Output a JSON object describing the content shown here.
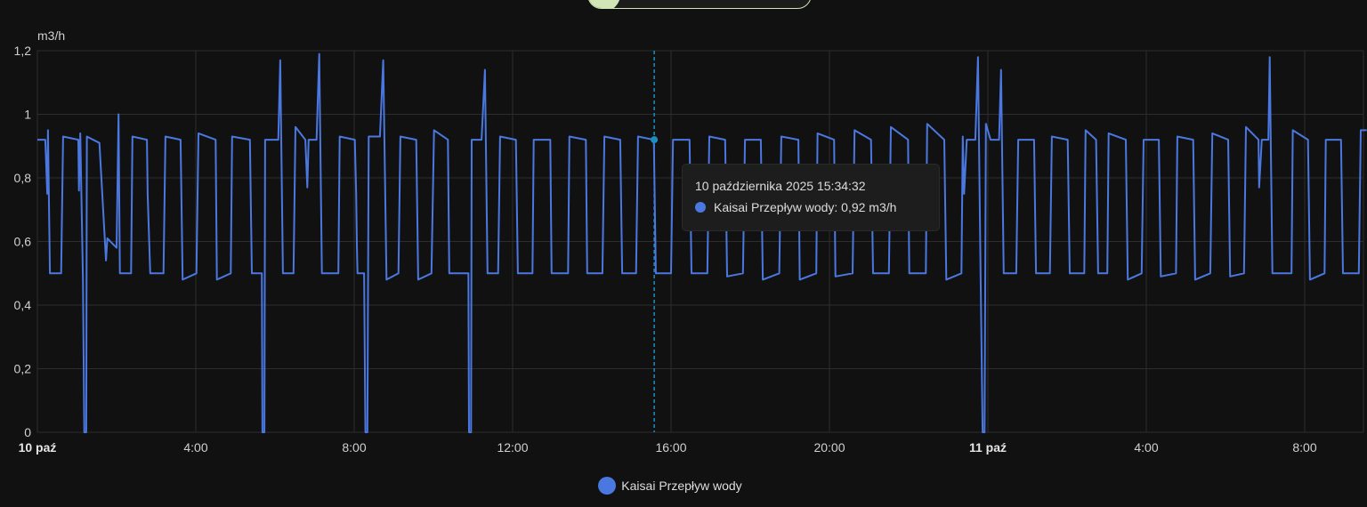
{
  "chart_data": {
    "type": "line",
    "ylabel": "m3/h",
    "ylim": [
      0,
      1.2
    ],
    "yticks": [
      "0",
      "0,2",
      "0,4",
      "0,6",
      "0,8",
      "1",
      "1,2"
    ],
    "ytick_values": [
      0,
      0.2,
      0.4,
      0.6,
      0.8,
      1.0,
      1.2
    ],
    "xlim": [
      "2025-10-10 00:00",
      "2025-10-11 09:34"
    ],
    "xticks": [
      {
        "time": "2025-10-10 00:00",
        "label": "10 paź",
        "bold": true
      },
      {
        "time": "2025-10-10 04:00",
        "label": "4:00",
        "bold": false
      },
      {
        "time": "2025-10-10 08:00",
        "label": "8:00",
        "bold": false
      },
      {
        "time": "2025-10-10 12:00",
        "label": "12:00",
        "bold": false
      },
      {
        "time": "2025-10-10 16:00",
        "label": "16:00",
        "bold": false
      },
      {
        "time": "2025-10-10 20:00",
        "label": "20:00",
        "bold": false
      },
      {
        "time": "2025-10-11 00:00",
        "label": "11 paź",
        "bold": true
      },
      {
        "time": "2025-10-11 04:00",
        "label": "4:00",
        "bold": false
      },
      {
        "time": "2025-10-11 08:00",
        "label": "8:00",
        "bold": false
      }
    ],
    "grid": true,
    "legend_position": "bottom",
    "series": [
      {
        "name": "Kaisai Przepływ wody",
        "color": "#4a78e0",
        "points": [
          [
            "2025-10-10 00:00",
            0.92
          ],
          [
            "2025-10-10 00:12",
            0.92
          ],
          [
            "2025-10-10 00:15",
            0.75
          ],
          [
            "2025-10-10 00:16",
            0.95
          ],
          [
            "2025-10-10 00:19",
            0.5
          ],
          [
            "2025-10-10 00:36",
            0.5
          ],
          [
            "2025-10-10 00:39",
            0.93
          ],
          [
            "2025-10-10 01:02",
            0.92
          ],
          [
            "2025-10-10 01:03",
            0.76
          ],
          [
            "2025-10-10 01:05",
            0.94
          ],
          [
            "2025-10-10 01:09",
            0.48
          ],
          [
            "2025-10-10 01:11",
            0
          ],
          [
            "2025-10-10 01:14",
            0
          ],
          [
            "2025-10-10 01:15",
            0.93
          ],
          [
            "2025-10-10 01:34",
            0.91
          ],
          [
            "2025-10-10 01:44",
            0.54
          ],
          [
            "2025-10-10 01:46",
            0.61
          ],
          [
            "2025-10-10 02:00",
            0.58
          ],
          [
            "2025-10-10 02:03",
            1.0
          ],
          [
            "2025-10-10 02:05",
            0.5
          ],
          [
            "2025-10-10 02:22",
            0.5
          ],
          [
            "2025-10-10 02:24",
            0.93
          ],
          [
            "2025-10-10 02:46",
            0.92
          ],
          [
            "2025-10-10 02:47",
            0.75
          ],
          [
            "2025-10-10 02:51",
            0.5
          ],
          [
            "2025-10-10 03:11",
            0.5
          ],
          [
            "2025-10-10 03:14",
            0.93
          ],
          [
            "2025-10-10 03:37",
            0.92
          ],
          [
            "2025-10-10 03:40",
            0.48
          ],
          [
            "2025-10-10 04:01",
            0.5
          ],
          [
            "2025-10-10 04:04",
            0.94
          ],
          [
            "2025-10-10 04:30",
            0.92
          ],
          [
            "2025-10-10 04:32",
            0.48
          ],
          [
            "2025-10-10 04:53",
            0.5
          ],
          [
            "2025-10-10 04:55",
            0.93
          ],
          [
            "2025-10-10 05:22",
            0.92
          ],
          [
            "2025-10-10 05:25",
            0.5
          ],
          [
            "2025-10-10 05:40",
            0.5
          ],
          [
            "2025-10-10 05:41",
            0
          ],
          [
            "2025-10-10 05:44",
            0
          ],
          [
            "2025-10-10 05:45",
            0.92
          ],
          [
            "2025-10-10 06:05",
            0.92
          ],
          [
            "2025-10-10 06:08",
            1.17
          ],
          [
            "2025-10-10 06:12",
            0.5
          ],
          [
            "2025-10-10 06:28",
            0.5
          ],
          [
            "2025-10-10 06:31",
            0.96
          ],
          [
            "2025-10-10 06:46",
            0.92
          ],
          [
            "2025-10-10 06:49",
            0.77
          ],
          [
            "2025-10-10 06:51",
            0.92
          ],
          [
            "2025-10-10 07:03",
            0.92
          ],
          [
            "2025-10-10 07:07",
            1.19
          ],
          [
            "2025-10-10 07:11",
            0.5
          ],
          [
            "2025-10-10 07:36",
            0.5
          ],
          [
            "2025-10-10 07:38",
            0.93
          ],
          [
            "2025-10-10 08:01",
            0.92
          ],
          [
            "2025-10-10 08:03",
            0.75
          ],
          [
            "2025-10-10 08:04",
            0.59
          ],
          [
            "2025-10-10 08:05",
            0.5
          ],
          [
            "2025-10-10 08:15",
            0.5
          ],
          [
            "2025-10-10 08:17",
            0
          ],
          [
            "2025-10-10 08:20",
            0
          ],
          [
            "2025-10-10 08:22",
            0.93
          ],
          [
            "2025-10-10 08:39",
            0.93
          ],
          [
            "2025-10-10 08:44",
            1.17
          ],
          [
            "2025-10-10 08:49",
            0.48
          ],
          [
            "2025-10-10 09:07",
            0.5
          ],
          [
            "2025-10-10 09:10",
            0.93
          ],
          [
            "2025-10-10 09:34",
            0.92
          ],
          [
            "2025-10-10 09:37",
            0.48
          ],
          [
            "2025-10-10 09:57",
            0.5
          ],
          [
            "2025-10-10 10:01",
            0.95
          ],
          [
            "2025-10-10 10:22",
            0.92
          ],
          [
            "2025-10-10 10:24",
            0.5
          ],
          [
            "2025-10-10 10:53",
            0.5
          ],
          [
            "2025-10-10 10:54",
            0
          ],
          [
            "2025-10-10 10:57",
            0
          ],
          [
            "2025-10-10 10:58",
            0.92
          ],
          [
            "2025-10-10 11:13",
            0.92
          ],
          [
            "2025-10-10 11:18",
            1.14
          ],
          [
            "2025-10-10 11:22",
            0.5
          ],
          [
            "2025-10-10 11:38",
            0.5
          ],
          [
            "2025-10-10 11:41",
            0.93
          ],
          [
            "2025-10-10 12:05",
            0.92
          ],
          [
            "2025-10-10 12:08",
            0.5
          ],
          [
            "2025-10-10 12:30",
            0.5
          ],
          [
            "2025-10-10 12:32",
            0.92
          ],
          [
            "2025-10-10 12:57",
            0.92
          ],
          [
            "2025-10-10 12:59",
            0.5
          ],
          [
            "2025-10-10 13:24",
            0.5
          ],
          [
            "2025-10-10 13:26",
            0.93
          ],
          [
            "2025-10-10 13:51",
            0.92
          ],
          [
            "2025-10-10 13:53",
            0.5
          ],
          [
            "2025-10-10 14:16",
            0.5
          ],
          [
            "2025-10-10 14:19",
            0.93
          ],
          [
            "2025-10-10 14:43",
            0.92
          ],
          [
            "2025-10-10 14:46",
            0.5
          ],
          [
            "2025-10-10 15:07",
            0.5
          ],
          [
            "2025-10-10 15:10",
            0.93
          ],
          [
            "2025-10-10 15:34",
            0.92
          ],
          [
            "2025-10-10 15:37",
            0.5
          ],
          [
            "2025-10-10 16:00",
            0.5
          ],
          [
            "2025-10-10 16:03",
            0.92
          ],
          [
            "2025-10-10 16:28",
            0.92
          ],
          [
            "2025-10-10 16:31",
            0.5
          ],
          [
            "2025-10-10 16:55",
            0.5
          ],
          [
            "2025-10-10 16:58",
            0.93
          ],
          [
            "2025-10-10 17:22",
            0.92
          ],
          [
            "2025-10-10 17:25",
            0.49
          ],
          [
            "2025-10-10 17:49",
            0.5
          ],
          [
            "2025-10-10 17:52",
            0.92
          ],
          [
            "2025-10-10 18:16",
            0.92
          ],
          [
            "2025-10-10 18:19",
            0.48
          ],
          [
            "2025-10-10 18:44",
            0.5
          ],
          [
            "2025-10-10 18:47",
            0.93
          ],
          [
            "2025-10-10 19:13",
            0.92
          ],
          [
            "2025-10-10 19:15",
            0.48
          ],
          [
            "2025-10-10 19:40",
            0.5
          ],
          [
            "2025-10-10 19:42",
            0.94
          ],
          [
            "2025-10-10 20:07",
            0.92
          ],
          [
            "2025-10-10 20:09",
            0.49
          ],
          [
            "2025-10-10 20:35",
            0.5
          ],
          [
            "2025-10-10 20:38",
            0.95
          ],
          [
            "2025-10-10 21:03",
            0.92
          ],
          [
            "2025-10-10 21:06",
            0.5
          ],
          [
            "2025-10-10 21:30",
            0.5
          ],
          [
            "2025-10-10 21:33",
            0.96
          ],
          [
            "2025-10-10 21:59",
            0.92
          ],
          [
            "2025-10-10 22:01",
            0.5
          ],
          [
            "2025-10-10 22:26",
            0.5
          ],
          [
            "2025-10-10 22:28",
            0.97
          ],
          [
            "2025-10-10 22:54",
            0.92
          ],
          [
            "2025-10-10 22:57",
            0.48
          ],
          [
            "2025-10-10 23:20",
            0.5
          ],
          [
            "2025-10-10 23:22",
            0.93
          ],
          [
            "2025-10-10 23:24",
            0.75
          ],
          [
            "2025-10-10 23:28",
            0.92
          ],
          [
            "2025-10-10 23:41",
            0.92
          ],
          [
            "2025-10-10 23:45",
            1.18
          ],
          [
            "2025-10-10 23:49",
            0.5
          ],
          [
            "2025-10-10 23:52",
            0
          ],
          [
            "2025-10-10 23:55",
            0
          ],
          [
            "2025-10-10 23:57",
            0.97
          ],
          [
            "2025-10-11 00:04",
            0.92
          ],
          [
            "2025-10-11 00:17",
            0.92
          ],
          [
            "2025-10-11 00:20",
            1.14
          ],
          [
            "2025-10-11 00:24",
            0.5
          ],
          [
            "2025-10-11 00:43",
            0.5
          ],
          [
            "2025-10-11 00:46",
            0.92
          ],
          [
            "2025-10-11 01:10",
            0.92
          ],
          [
            "2025-10-11 01:13",
            0.5
          ],
          [
            "2025-10-11 01:34",
            0.5
          ],
          [
            "2025-10-11 01:37",
            0.93
          ],
          [
            "2025-10-11 02:01",
            0.92
          ],
          [
            "2025-10-11 02:04",
            0.5
          ],
          [
            "2025-10-11 02:26",
            0.5
          ],
          [
            "2025-10-11 02:28",
            0.95
          ],
          [
            "2025-10-11 02:44",
            0.92
          ],
          [
            "2025-10-11 02:47",
            0.5
          ],
          [
            "2025-10-11 03:01",
            0.5
          ],
          [
            "2025-10-11 03:03",
            0.94
          ],
          [
            "2025-10-11 03:29",
            0.92
          ],
          [
            "2025-10-11 03:32",
            0.48
          ],
          [
            "2025-10-11 03:53",
            0.5
          ],
          [
            "2025-10-11 03:56",
            0.92
          ],
          [
            "2025-10-11 04:19",
            0.92
          ],
          [
            "2025-10-11 04:22",
            0.49
          ],
          [
            "2025-10-11 04:45",
            0.5
          ],
          [
            "2025-10-11 04:47",
            0.93
          ],
          [
            "2025-10-11 05:11",
            0.92
          ],
          [
            "2025-10-11 05:14",
            0.48
          ],
          [
            "2025-10-11 05:37",
            0.5
          ],
          [
            "2025-10-11 05:40",
            0.94
          ],
          [
            "2025-10-11 06:04",
            0.92
          ],
          [
            "2025-10-11 06:07",
            0.49
          ],
          [
            "2025-10-11 06:28",
            0.5
          ],
          [
            "2025-10-11 06:31",
            0.96
          ],
          [
            "2025-10-11 06:50",
            0.92
          ],
          [
            "2025-10-11 06:51",
            0.77
          ],
          [
            "2025-10-11 06:55",
            0.92
          ],
          [
            "2025-10-11 07:05",
            0.92
          ],
          [
            "2025-10-11 07:07",
            1.18
          ],
          [
            "2025-10-11 07:11",
            0.5
          ],
          [
            "2025-10-11 07:40",
            0.5
          ],
          [
            "2025-10-11 07:42",
            0.95
          ],
          [
            "2025-10-11 08:05",
            0.92
          ],
          [
            "2025-10-11 08:08",
            0.48
          ],
          [
            "2025-10-11 08:30",
            0.5
          ],
          [
            "2025-10-11 08:32",
            0.92
          ],
          [
            "2025-10-11 08:55",
            0.92
          ],
          [
            "2025-10-11 08:58",
            0.5
          ],
          [
            "2025-10-11 09:22",
            0.5
          ],
          [
            "2025-10-11 09:25",
            0.95
          ],
          [
            "2025-10-11 09:34",
            0.95
          ]
        ]
      }
    ],
    "crosshair": {
      "time": "2025-10-10 15:34:32",
      "value": 0.92,
      "color": "#1a8fc4"
    }
  },
  "tooltip": {
    "title": "10 października 2025 15:34:32",
    "series_label": "Kaisai Przepływ wody: 0,92 m3/h"
  },
  "legend": {
    "label": "Kaisai Przepływ wody"
  },
  "colors": {
    "background": "#111111",
    "grid": "#2d2d2d",
    "line": "#4a78e0",
    "pill_accent": "#d2e5b6"
  }
}
